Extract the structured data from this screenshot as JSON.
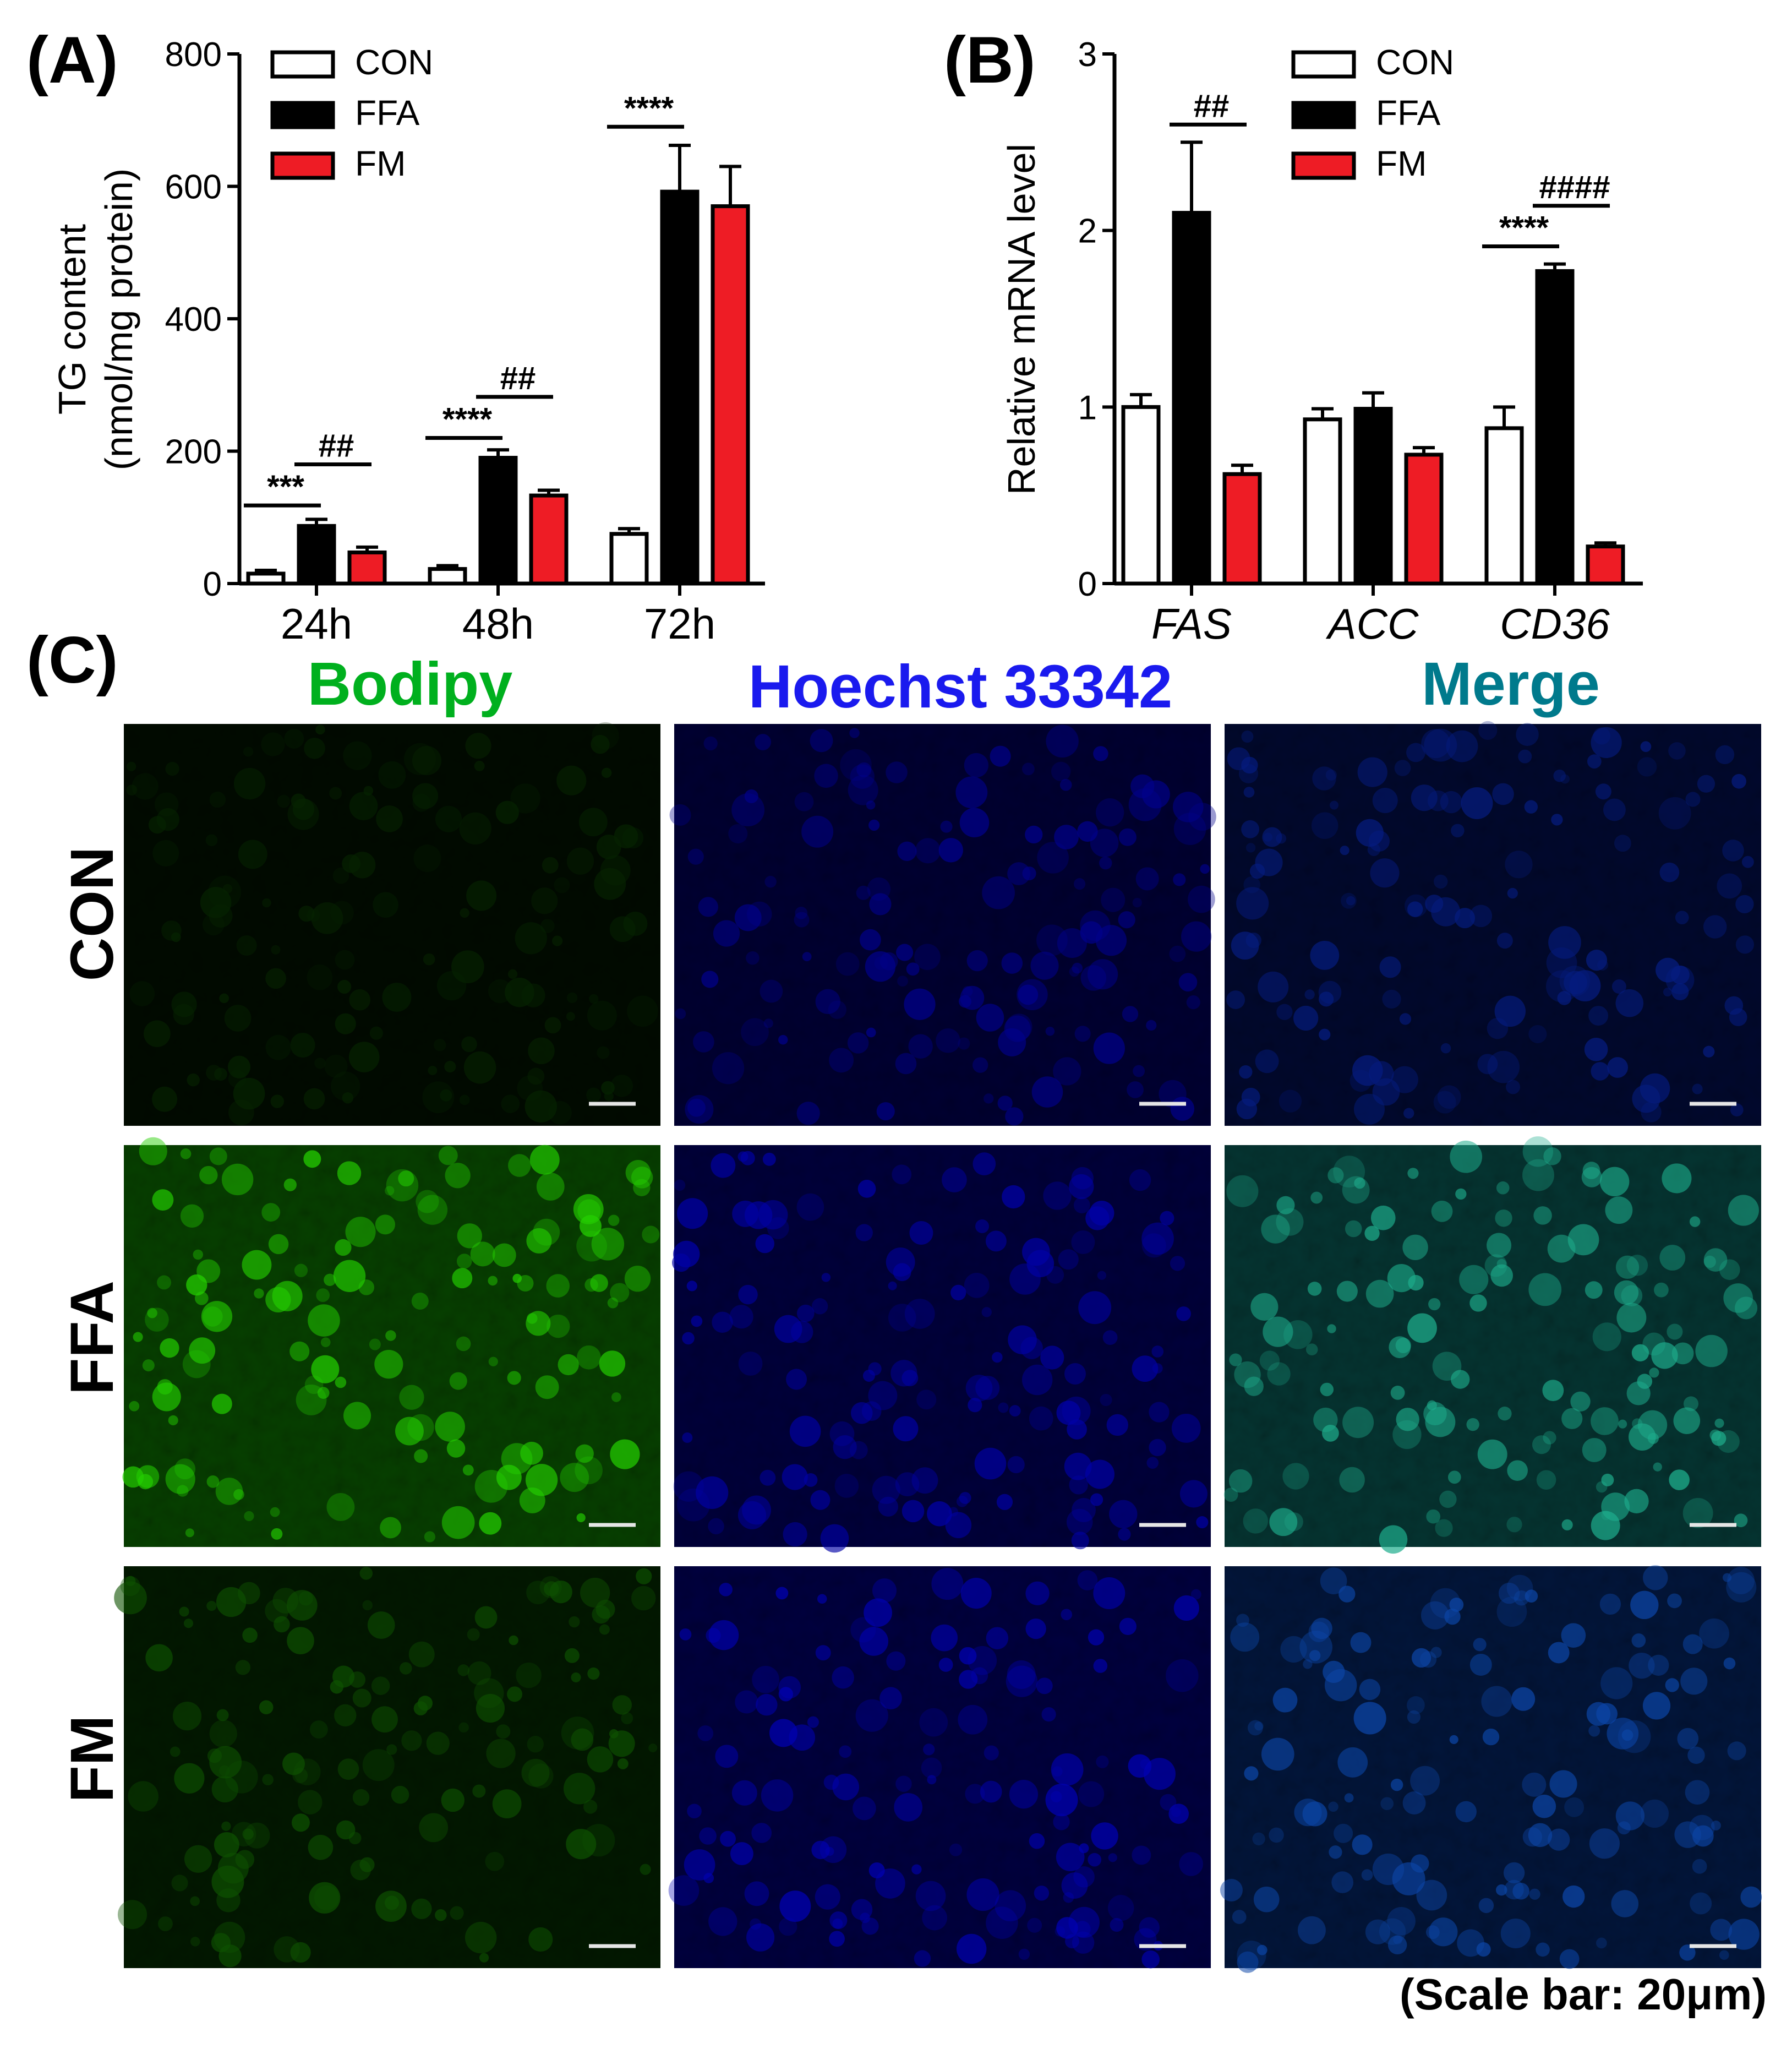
{
  "chart_data": [
    {
      "panel": "(A)",
      "type": "bar",
      "categories": [
        "24h",
        "48h",
        "72h"
      ],
      "ylabel": [
        "TG content",
        "(nmol/mg protein)"
      ],
      "ylim": [
        0,
        800
      ],
      "yticks": [
        0,
        200,
        400,
        600,
        800
      ],
      "legend_position": "top-left",
      "series": [
        {
          "name": "CON",
          "color": "#ffffff",
          "values": [
            15,
            22,
            75
          ],
          "errors": [
            5,
            5,
            8
          ]
        },
        {
          "name": "FFA",
          "color": "#000000",
          "values": [
            87,
            190,
            592
          ],
          "errors": [
            10,
            12,
            70
          ]
        },
        {
          "name": "FM",
          "color": "#ee1c25",
          "values": [
            47,
            133,
            570
          ],
          "errors": [
            8,
            8,
            60
          ]
        }
      ],
      "significance": [
        {
          "category": 0,
          "from": 0,
          "to": 1,
          "label": "***",
          "y": 118
        },
        {
          "category": 0,
          "from": 1,
          "to": 2,
          "label": "##",
          "y": 180
        },
        {
          "category": 1,
          "from": 0,
          "to": 1,
          "label": "****",
          "y": 220
        },
        {
          "category": 1,
          "from": 1,
          "to": 2,
          "label": "##",
          "y": 282
        },
        {
          "category": 2,
          "from": 0,
          "to": 1,
          "label": "****",
          "y": 690
        }
      ]
    },
    {
      "panel": "(B)",
      "type": "bar",
      "categories": [
        "FAS",
        "ACC",
        "CD36"
      ],
      "categories_italic": true,
      "ylabel": [
        "Relative mRNA level"
      ],
      "ylim": [
        0,
        3
      ],
      "yticks": [
        0,
        1,
        2,
        3
      ],
      "legend_position": "top-right",
      "series": [
        {
          "name": "CON",
          "color": "#ffffff",
          "values": [
            1.0,
            0.93,
            0.88
          ],
          "errors": [
            0.07,
            0.06,
            0.12
          ]
        },
        {
          "name": "FFA",
          "color": "#000000",
          "values": [
            2.1,
            0.99,
            1.77
          ],
          "errors": [
            0.4,
            0.09,
            0.04
          ]
        },
        {
          "name": "FM",
          "color": "#ee1c25",
          "values": [
            0.62,
            0.73,
            0.21
          ],
          "errors": [
            0.05,
            0.04,
            0.02
          ]
        }
      ],
      "significance": [
        {
          "category": 0,
          "from": 1,
          "to": 2,
          "label": "##",
          "y": 2.6
        },
        {
          "category": 2,
          "from": 0,
          "to": 1,
          "label": "****",
          "y": 1.91
        },
        {
          "category": 2,
          "from": 1,
          "to": 2,
          "label": "####",
          "y": 2.14
        }
      ]
    }
  ],
  "panel_c": {
    "letter": "(C)",
    "columns": [
      {
        "title": "Bodipy",
        "color": "#00b01e"
      },
      {
        "title": "Hoechst 33342",
        "color": "#1a1aee"
      },
      {
        "title": "Merge",
        "color": "#007a8c"
      }
    ],
    "rows": [
      "CON",
      "FFA",
      "FM"
    ],
    "scale_note": "(Scale bar: 20μm)"
  }
}
